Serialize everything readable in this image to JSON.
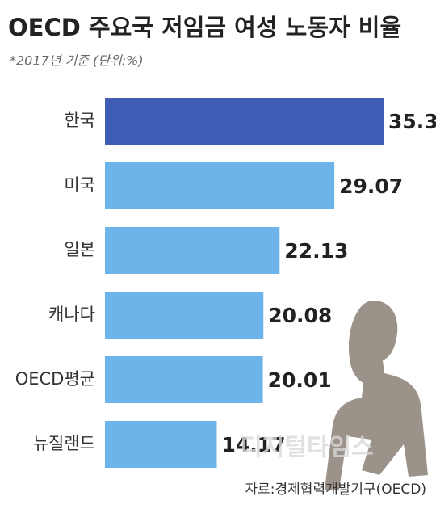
{
  "chart_data": {
    "type": "hbar",
    "title": "OECD 주요국 저임금 여성 노동자 비율",
    "subtitle": "*2017년 기준 (단위:%)",
    "source": "자료:경제협력개발기구(OECD)",
    "watermark": "디지털타임스",
    "categories": [
      "한국",
      "미국",
      "일본",
      "캐나다",
      "OECD평균",
      "뉴질랜드"
    ],
    "values": [
      35.3,
      29.07,
      22.13,
      20.08,
      20.01,
      14.17
    ],
    "colors": [
      "#3f5db4",
      "#6cb4e9",
      "#6cb4e9",
      "#6cb4e9",
      "#6cb4e9",
      "#6cb4e9"
    ]
  }
}
